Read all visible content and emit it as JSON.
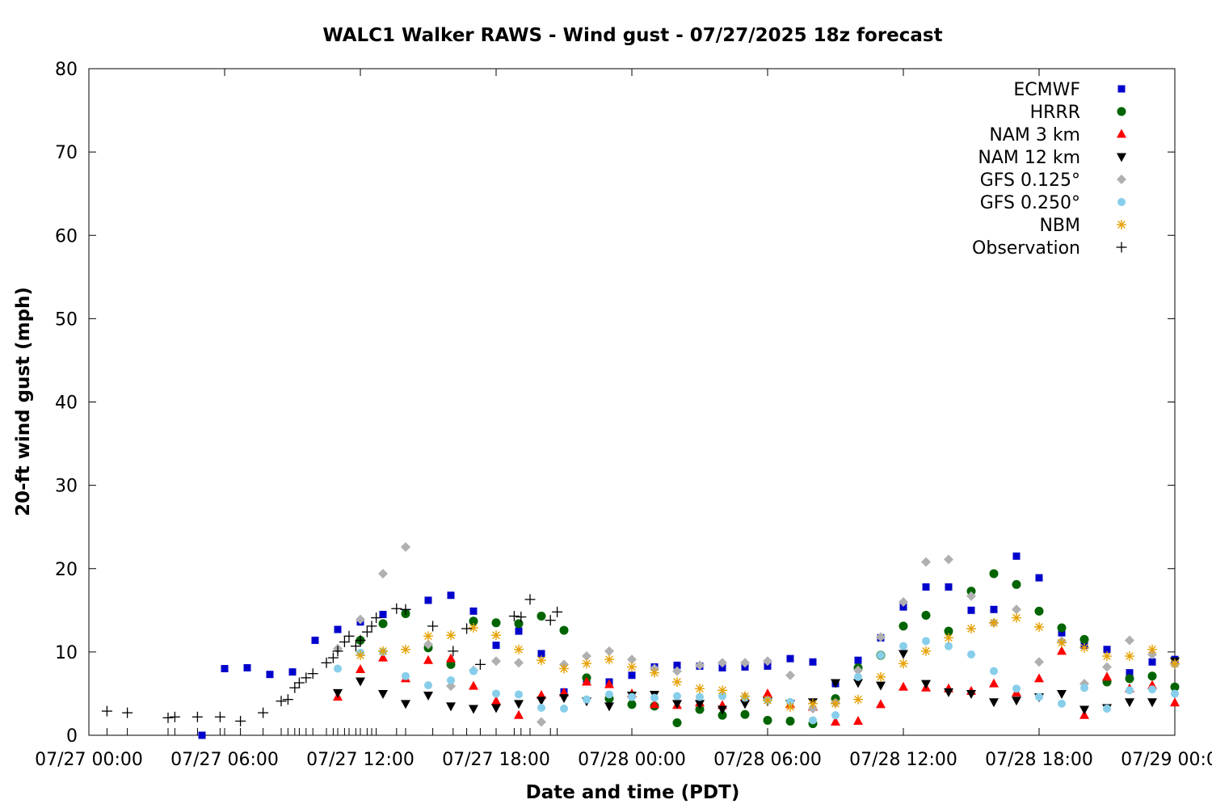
{
  "chart_data": {
    "type": "scatter",
    "title": "WALC1 Walker RAWS - Wind gust - 07/27/2025 18z forecast",
    "xlabel": "Date and time (PDT)",
    "ylabel": "20-ft wind gust (mph)",
    "x_unit": "hours since 07/27 00:00 PDT",
    "xlim": [
      0,
      48
    ],
    "ylim": [
      0,
      80
    ],
    "x_ticks": [
      {
        "x": 0,
        "label": "07/27 00:00"
      },
      {
        "x": 6,
        "label": "07/27 06:00"
      },
      {
        "x": 12,
        "label": "07/27 12:00"
      },
      {
        "x": 18,
        "label": "07/27 18:00"
      },
      {
        "x": 24,
        "label": "07/28 00:00"
      },
      {
        "x": 30,
        "label": "07/28 06:00"
      },
      {
        "x": 36,
        "label": "07/28 12:00"
      },
      {
        "x": 42,
        "label": "07/28 18:00"
      },
      {
        "x": 48,
        "label": "07/29 00:00"
      }
    ],
    "y_ticks": [
      0,
      10,
      20,
      30,
      40,
      50,
      60,
      70,
      80
    ],
    "legend_position": "top-right",
    "grid": false,
    "series": [
      {
        "name": "ECMWF",
        "marker": "square",
        "color": "#0000cc",
        "points": [
          [
            5,
            0
          ],
          [
            6,
            8
          ],
          [
            7,
            8.1
          ],
          [
            8,
            7.3
          ],
          [
            9,
            7.6
          ],
          [
            10,
            11.4
          ],
          [
            11,
            12.7
          ],
          [
            12,
            13.6
          ],
          [
            13,
            14.5
          ],
          [
            14,
            14.7
          ],
          [
            15,
            16.2
          ],
          [
            16,
            16.8
          ],
          [
            17,
            14.9
          ],
          [
            18,
            10.8
          ],
          [
            19,
            12.5
          ],
          [
            20,
            9.8
          ],
          [
            21,
            5.2
          ],
          [
            22,
            6.4
          ],
          [
            23,
            6.4
          ],
          [
            24,
            7.2
          ],
          [
            25,
            8.2
          ],
          [
            26,
            8.4
          ],
          [
            27,
            8.3
          ],
          [
            28,
            8.1
          ],
          [
            29,
            8.2
          ],
          [
            30,
            8.3
          ],
          [
            31,
            9.2
          ],
          [
            32,
            8.8
          ],
          [
            33,
            6.2
          ],
          [
            34,
            9
          ],
          [
            35,
            11.7
          ],
          [
            36,
            15.4
          ],
          [
            37,
            17.8
          ],
          [
            38,
            17.8
          ],
          [
            39,
            15
          ],
          [
            40,
            15.1
          ],
          [
            41,
            21.5
          ],
          [
            42,
            18.9
          ],
          [
            43,
            12.3
          ],
          [
            44,
            10.8
          ],
          [
            45,
            10.3
          ],
          [
            46,
            7.5
          ],
          [
            47,
            8.8
          ],
          [
            48,
            9.1
          ]
        ]
      },
      {
        "name": "HRRR",
        "marker": "circle",
        "color": "#006400",
        "points": [
          [
            12,
            11.4
          ],
          [
            13,
            13.4
          ],
          [
            14,
            14.6
          ],
          [
            15,
            10.5
          ],
          [
            16,
            8.5
          ],
          [
            17,
            13.7
          ],
          [
            18,
            13.5
          ],
          [
            19,
            13.4
          ],
          [
            20,
            14.3
          ],
          [
            21,
            12.6
          ],
          [
            22,
            6.9
          ],
          [
            23,
            4.4
          ],
          [
            24,
            3.7
          ],
          [
            25,
            3.5
          ],
          [
            26,
            1.5
          ],
          [
            27,
            3.1
          ],
          [
            28,
            2.4
          ],
          [
            29,
            2.5
          ],
          [
            30,
            1.8
          ],
          [
            31,
            1.7
          ],
          [
            32,
            1.4
          ],
          [
            33,
            4.4
          ],
          [
            34,
            8.1
          ],
          [
            35,
            9.6
          ],
          [
            36,
            13.1
          ],
          [
            37,
            14.4
          ],
          [
            38,
            12.5
          ],
          [
            39,
            17.3
          ],
          [
            40,
            19.4
          ],
          [
            41,
            18.1
          ],
          [
            42,
            14.9
          ],
          [
            43,
            12.9
          ],
          [
            44,
            11.5
          ],
          [
            45,
            6.4
          ],
          [
            46,
            6.8
          ],
          [
            47,
            7.1
          ],
          [
            48,
            5.8
          ]
        ]
      },
      {
        "name": "NAM 3 km",
        "marker": "triangle-up",
        "color": "#ff0000",
        "points": [
          [
            11,
            4.6
          ],
          [
            12,
            7.9
          ],
          [
            13,
            9.3
          ],
          [
            14,
            6.8
          ],
          [
            15,
            9
          ],
          [
            16,
            9.2
          ],
          [
            17,
            5.9
          ],
          [
            18,
            4.1
          ],
          [
            19,
            2.4
          ],
          [
            20,
            4.8
          ],
          [
            21,
            5.1
          ],
          [
            22,
            6.4
          ],
          [
            23,
            6.1
          ],
          [
            24,
            5
          ],
          [
            25,
            3.7
          ],
          [
            26,
            3.6
          ],
          [
            27,
            3.9
          ],
          [
            28,
            3.6
          ],
          [
            29,
            4.6
          ],
          [
            30,
            5
          ],
          [
            31,
            3.7
          ],
          [
            32,
            3.4
          ],
          [
            33,
            1.6
          ],
          [
            34,
            1.7
          ],
          [
            35,
            3.7
          ],
          [
            36,
            5.8
          ],
          [
            37,
            5.7
          ],
          [
            38,
            5.6
          ],
          [
            39,
            5.3
          ],
          [
            40,
            6.2
          ],
          [
            41,
            5.1
          ],
          [
            42,
            6.8
          ],
          [
            43,
            10.1
          ],
          [
            44,
            2.4
          ],
          [
            45,
            7
          ],
          [
            46,
            5.6
          ],
          [
            47,
            6
          ],
          [
            48,
            3.9
          ]
        ]
      },
      {
        "name": "NAM 12 km",
        "marker": "triangle-down",
        "color": "#000000",
        "points": [
          [
            11,
            5.1
          ],
          [
            12,
            6.5
          ],
          [
            13,
            5
          ],
          [
            14,
            3.8
          ],
          [
            15,
            4.8
          ],
          [
            16,
            3.5
          ],
          [
            17,
            3.2
          ],
          [
            18,
            3.3
          ],
          [
            19,
            3.8
          ],
          [
            20,
            4.2
          ],
          [
            21,
            4.5
          ],
          [
            22,
            4.1
          ],
          [
            23,
            3.5
          ],
          [
            24,
            4.8
          ],
          [
            25,
            4.9
          ],
          [
            26,
            3.8
          ],
          [
            27,
            3.8
          ],
          [
            28,
            3.1
          ],
          [
            29,
            3.8
          ],
          [
            30,
            4.1
          ],
          [
            31,
            3.8
          ],
          [
            32,
            4
          ],
          [
            33,
            6.3
          ],
          [
            34,
            6.3
          ],
          [
            35,
            6
          ],
          [
            36,
            9.8
          ],
          [
            37,
            6.2
          ],
          [
            38,
            5.2
          ],
          [
            39,
            5
          ],
          [
            40,
            4
          ],
          [
            41,
            4.2
          ],
          [
            42,
            4.6
          ],
          [
            43,
            5
          ],
          [
            44,
            3.1
          ],
          [
            45,
            3.3
          ],
          [
            46,
            4
          ],
          [
            47,
            4
          ],
          [
            48,
            8.9
          ]
        ]
      },
      {
        "name": "GFS 0.125°",
        "marker": "diamond",
        "color": "#b0b0b0",
        "points": [
          [
            11,
            10.4
          ],
          [
            12,
            13.9
          ],
          [
            13,
            19.4
          ],
          [
            14,
            22.6
          ],
          [
            15,
            10.9
          ],
          [
            16,
            5.9
          ],
          [
            17,
            7.8
          ],
          [
            18,
            8.9
          ],
          [
            19,
            8.7
          ],
          [
            20,
            1.6
          ],
          [
            21,
            8.5
          ],
          [
            22,
            9.5
          ],
          [
            23,
            10.1
          ],
          [
            24,
            9.1
          ],
          [
            25,
            8
          ],
          [
            26,
            7.7
          ],
          [
            27,
            8.4
          ],
          [
            28,
            8.7
          ],
          [
            29,
            8.7
          ],
          [
            30,
            8.9
          ],
          [
            31,
            7.2
          ],
          [
            32,
            3.2
          ],
          [
            33,
            3.9
          ],
          [
            34,
            7.8
          ],
          [
            35,
            11.8
          ],
          [
            36,
            16
          ],
          [
            37,
            20.8
          ],
          [
            38,
            21.1
          ],
          [
            39,
            16.7
          ],
          [
            40,
            13.5
          ],
          [
            41,
            15.1
          ],
          [
            42,
            8.8
          ],
          [
            43,
            11.3
          ],
          [
            44,
            6.2
          ],
          [
            45,
            8.2
          ],
          [
            46,
            11.4
          ],
          [
            47,
            9.7
          ],
          [
            48,
            8.5
          ]
        ]
      },
      {
        "name": "GFS 0.250°",
        "marker": "circle-small",
        "color": "#87ceeb",
        "points": [
          [
            11,
            8
          ],
          [
            12,
            9.9
          ],
          [
            13,
            10
          ],
          [
            14,
            7.1
          ],
          [
            15,
            6
          ],
          [
            16,
            6.6
          ],
          [
            17,
            7.7
          ],
          [
            18,
            5
          ],
          [
            19,
            4.9
          ],
          [
            20,
            3.3
          ],
          [
            21,
            3.2
          ],
          [
            22,
            4.3
          ],
          [
            23,
            4.9
          ],
          [
            24,
            4.6
          ],
          [
            25,
            4.5
          ],
          [
            26,
            4.7
          ],
          [
            27,
            4.6
          ],
          [
            28,
            4.7
          ],
          [
            29,
            4.5
          ],
          [
            30,
            4.2
          ],
          [
            31,
            4
          ],
          [
            32,
            1.8
          ],
          [
            33,
            2.4
          ],
          [
            34,
            7
          ],
          [
            35,
            9.6
          ],
          [
            36,
            10.7
          ],
          [
            37,
            11.3
          ],
          [
            38,
            10.7
          ],
          [
            39,
            9.7
          ],
          [
            40,
            7.7
          ],
          [
            41,
            5.6
          ],
          [
            42,
            4.6
          ],
          [
            43,
            3.8
          ],
          [
            44,
            5.7
          ],
          [
            45,
            3.2
          ],
          [
            46,
            5.4
          ],
          [
            47,
            5.5
          ],
          [
            48,
            5
          ]
        ]
      },
      {
        "name": "NBM",
        "marker": "asterisk",
        "color": "#e6a000",
        "points": [
          [
            12,
            9.6
          ],
          [
            13,
            10.1
          ],
          [
            14,
            10.3
          ],
          [
            15,
            11.9
          ],
          [
            16,
            12
          ],
          [
            17,
            12.9
          ],
          [
            18,
            12
          ],
          [
            19,
            10.3
          ],
          [
            20,
            9
          ],
          [
            21,
            8
          ],
          [
            22,
            8.6
          ],
          [
            23,
            9.1
          ],
          [
            24,
            8.2
          ],
          [
            25,
            7.5
          ],
          [
            26,
            6.4
          ],
          [
            27,
            5.6
          ],
          [
            28,
            5.4
          ],
          [
            29,
            4.7
          ],
          [
            30,
            4.2
          ],
          [
            31,
            3.4
          ],
          [
            32,
            3.8
          ],
          [
            33,
            3.8
          ],
          [
            34,
            4.3
          ],
          [
            35,
            7
          ],
          [
            36,
            8.6
          ],
          [
            37,
            10.1
          ],
          [
            38,
            11.7
          ],
          [
            39,
            12.8
          ],
          [
            40,
            13.5
          ],
          [
            41,
            14.1
          ],
          [
            42,
            13
          ],
          [
            43,
            11.1
          ],
          [
            44,
            10.5
          ],
          [
            45,
            9.5
          ],
          [
            46,
            9.5
          ],
          [
            47,
            10.3
          ],
          [
            48,
            8.6
          ]
        ]
      },
      {
        "name": "Observation",
        "marker": "plus",
        "color": "#000000",
        "points": [
          [
            0.8,
            2.9
          ],
          [
            1.7,
            2.7
          ],
          [
            3.5,
            2.1
          ],
          [
            3.8,
            2.2
          ],
          [
            4.8,
            2.2
          ],
          [
            5.8,
            2.2
          ],
          [
            6.7,
            1.7
          ],
          [
            7.7,
            2.7
          ],
          [
            8.5,
            4.1
          ],
          [
            8.8,
            4.3
          ],
          [
            9.1,
            5.7
          ],
          [
            9.3,
            6.3
          ],
          [
            9.6,
            6.9
          ],
          [
            9.9,
            7.4
          ],
          [
            10.5,
            8.7
          ],
          [
            10.8,
            9.3
          ],
          [
            11,
            10.1
          ],
          [
            11.3,
            11.2
          ],
          [
            11.5,
            11.9
          ],
          [
            11.8,
            10.7
          ],
          [
            12,
            11.4
          ],
          [
            12.3,
            12.4
          ],
          [
            12.5,
            13.1
          ],
          [
            12.7,
            14.1
          ],
          [
            13.6,
            15.2
          ],
          [
            14,
            15.1
          ],
          [
            15.2,
            13.1
          ],
          [
            16.1,
            10.1
          ],
          [
            16.7,
            12.8
          ],
          [
            17.3,
            8.5
          ],
          [
            18.8,
            14.3
          ],
          [
            19.1,
            14.2
          ],
          [
            19.5,
            16.3
          ],
          [
            20.4,
            13.8
          ],
          [
            20.7,
            14.8
          ]
        ]
      }
    ]
  }
}
